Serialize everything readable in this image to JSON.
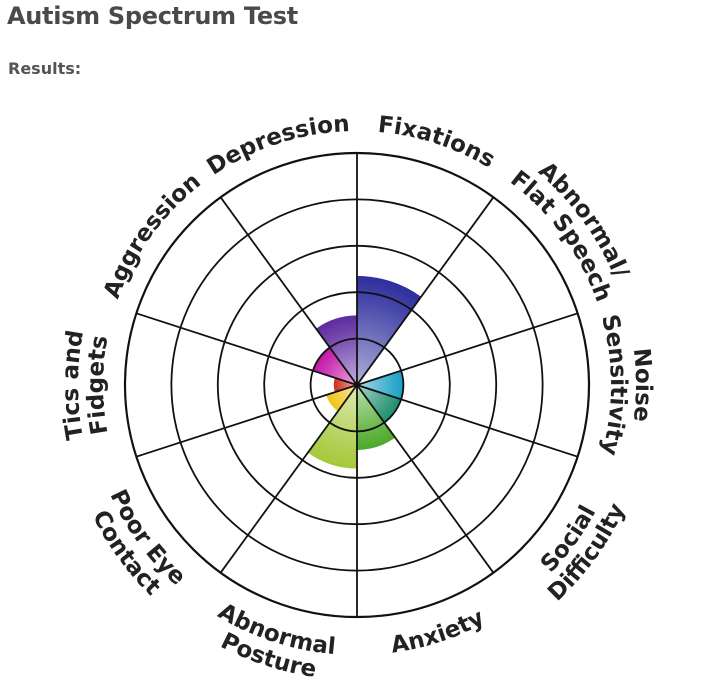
{
  "page": {
    "title": "Autism Spectrum Test",
    "results_label": "Results:"
  },
  "chart_data": {
    "type": "radial-bar",
    "rings": 5,
    "max_value": 5,
    "grid": true,
    "categories": [
      {
        "label": [
          "Fixations"
        ],
        "value": 2.35,
        "color": "#2e2e9e"
      },
      {
        "label": [
          "Abnormal/",
          "Flat Speech"
        ],
        "value": 0,
        "color": "#3355bb"
      },
      {
        "label": [
          "Noise",
          "Sensitivity"
        ],
        "value": 1.0,
        "color": "#1aa0c6"
      },
      {
        "label": [
          "Social",
          "Difficulty"
        ],
        "value": 1.0,
        "color": "#1d8f6e"
      },
      {
        "label": [
          "Anxiety"
        ],
        "value": 1.4,
        "color": "#4daa2a"
      },
      {
        "label": [
          "Abnormal",
          "Posture"
        ],
        "value": 1.8,
        "color": "#a5c93a"
      },
      {
        "label": [
          "Poor Eye",
          "Contact"
        ],
        "value": 0.7,
        "color": "#f0c419"
      },
      {
        "label": [
          "Tics and",
          "Fidgets"
        ],
        "value": 0.5,
        "color": "#d42d1b"
      },
      {
        "label": [
          "Aggression"
        ],
        "value": 1.0,
        "color": "#c416a6"
      },
      {
        "label": [
          "Depression"
        ],
        "value": 1.5,
        "color": "#5e2aa0"
      }
    ]
  }
}
